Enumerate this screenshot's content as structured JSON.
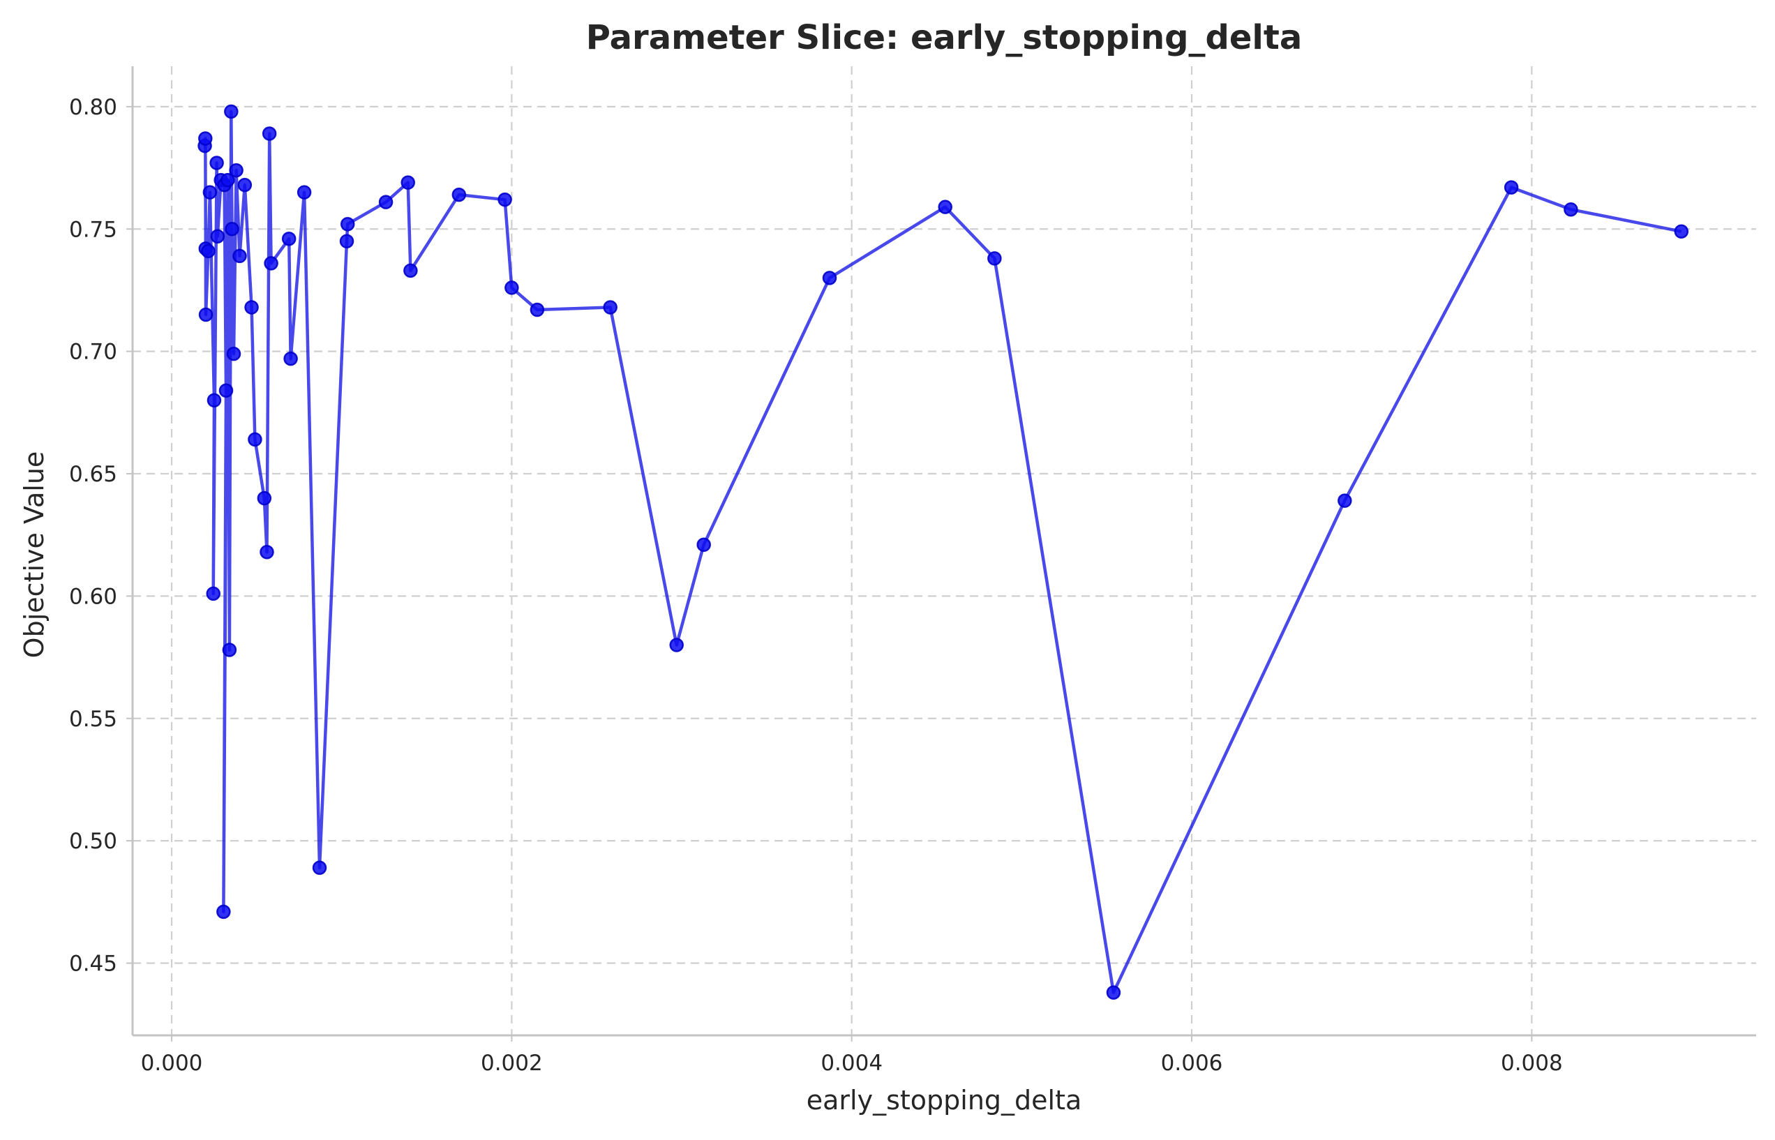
{
  "chart_data": {
    "type": "line",
    "title": "Parameter Slice: early_stopping_delta",
    "xlabel": "early_stopping_delta",
    "ylabel": "Objective Value",
    "xlim": [
      -0.00023,
      0.00932
    ],
    "ylim": [
      0.4205,
      0.8165
    ],
    "x_ticks": [
      0.0,
      0.002,
      0.004,
      0.006,
      0.008
    ],
    "x_tick_labels": [
      "0.000",
      "0.002",
      "0.004",
      "0.006",
      "0.008"
    ],
    "y_ticks": [
      0.45,
      0.5,
      0.55,
      0.6,
      0.65,
      0.7,
      0.75,
      0.8
    ],
    "y_tick_labels": [
      "0.45",
      "0.50",
      "0.55",
      "0.60",
      "0.65",
      "0.70",
      "0.75",
      "0.80"
    ],
    "grid": true,
    "colors": {
      "line": "#1a1ae6",
      "point": "#0d0df2",
      "grid": "#cfcfcf",
      "spine": "#c4c4c4"
    },
    "series": [
      {
        "x": [
          0.000195,
          0.000198,
          0.0002,
          0.000201,
          0.000215,
          0.000225,
          0.00025,
          0.000245,
          0.000265,
          0.00027,
          0.00029,
          0.00031,
          0.00032,
          0.000305,
          0.00033,
          0.00034,
          0.00035,
          0.000355,
          0.000365,
          0.00038,
          0.0004,
          0.00043,
          0.00047,
          0.00049,
          0.000545,
          0.00056,
          0.000575,
          0.000585,
          0.00069,
          0.0007,
          0.00078,
          0.00087,
          0.00103,
          0.001035,
          0.00126,
          0.00139,
          0.001405,
          0.00169,
          0.00196,
          0.002,
          0.00215,
          0.00258,
          0.00297,
          0.00313,
          0.00387,
          0.00455,
          0.00484,
          0.00554,
          0.0069,
          0.00788,
          0.00823,
          0.00888
        ],
        "y": [
          0.784,
          0.787,
          0.742,
          0.715,
          0.741,
          0.765,
          0.68,
          0.601,
          0.777,
          0.747,
          0.77,
          0.768,
          0.684,
          0.471,
          0.77,
          0.578,
          0.798,
          0.75,
          0.699,
          0.774,
          0.739,
          0.768,
          0.718,
          0.664,
          0.64,
          0.618,
          0.789,
          0.736,
          0.746,
          0.697,
          0.765,
          0.489,
          0.745,
          0.752,
          0.761,
          0.769,
          0.733,
          0.764,
          0.762,
          0.726,
          0.717,
          0.718,
          0.58,
          0.621,
          0.73,
          0.759,
          0.738,
          0.438,
          0.639,
          0.767,
          0.758,
          0.749
        ]
      }
    ]
  }
}
